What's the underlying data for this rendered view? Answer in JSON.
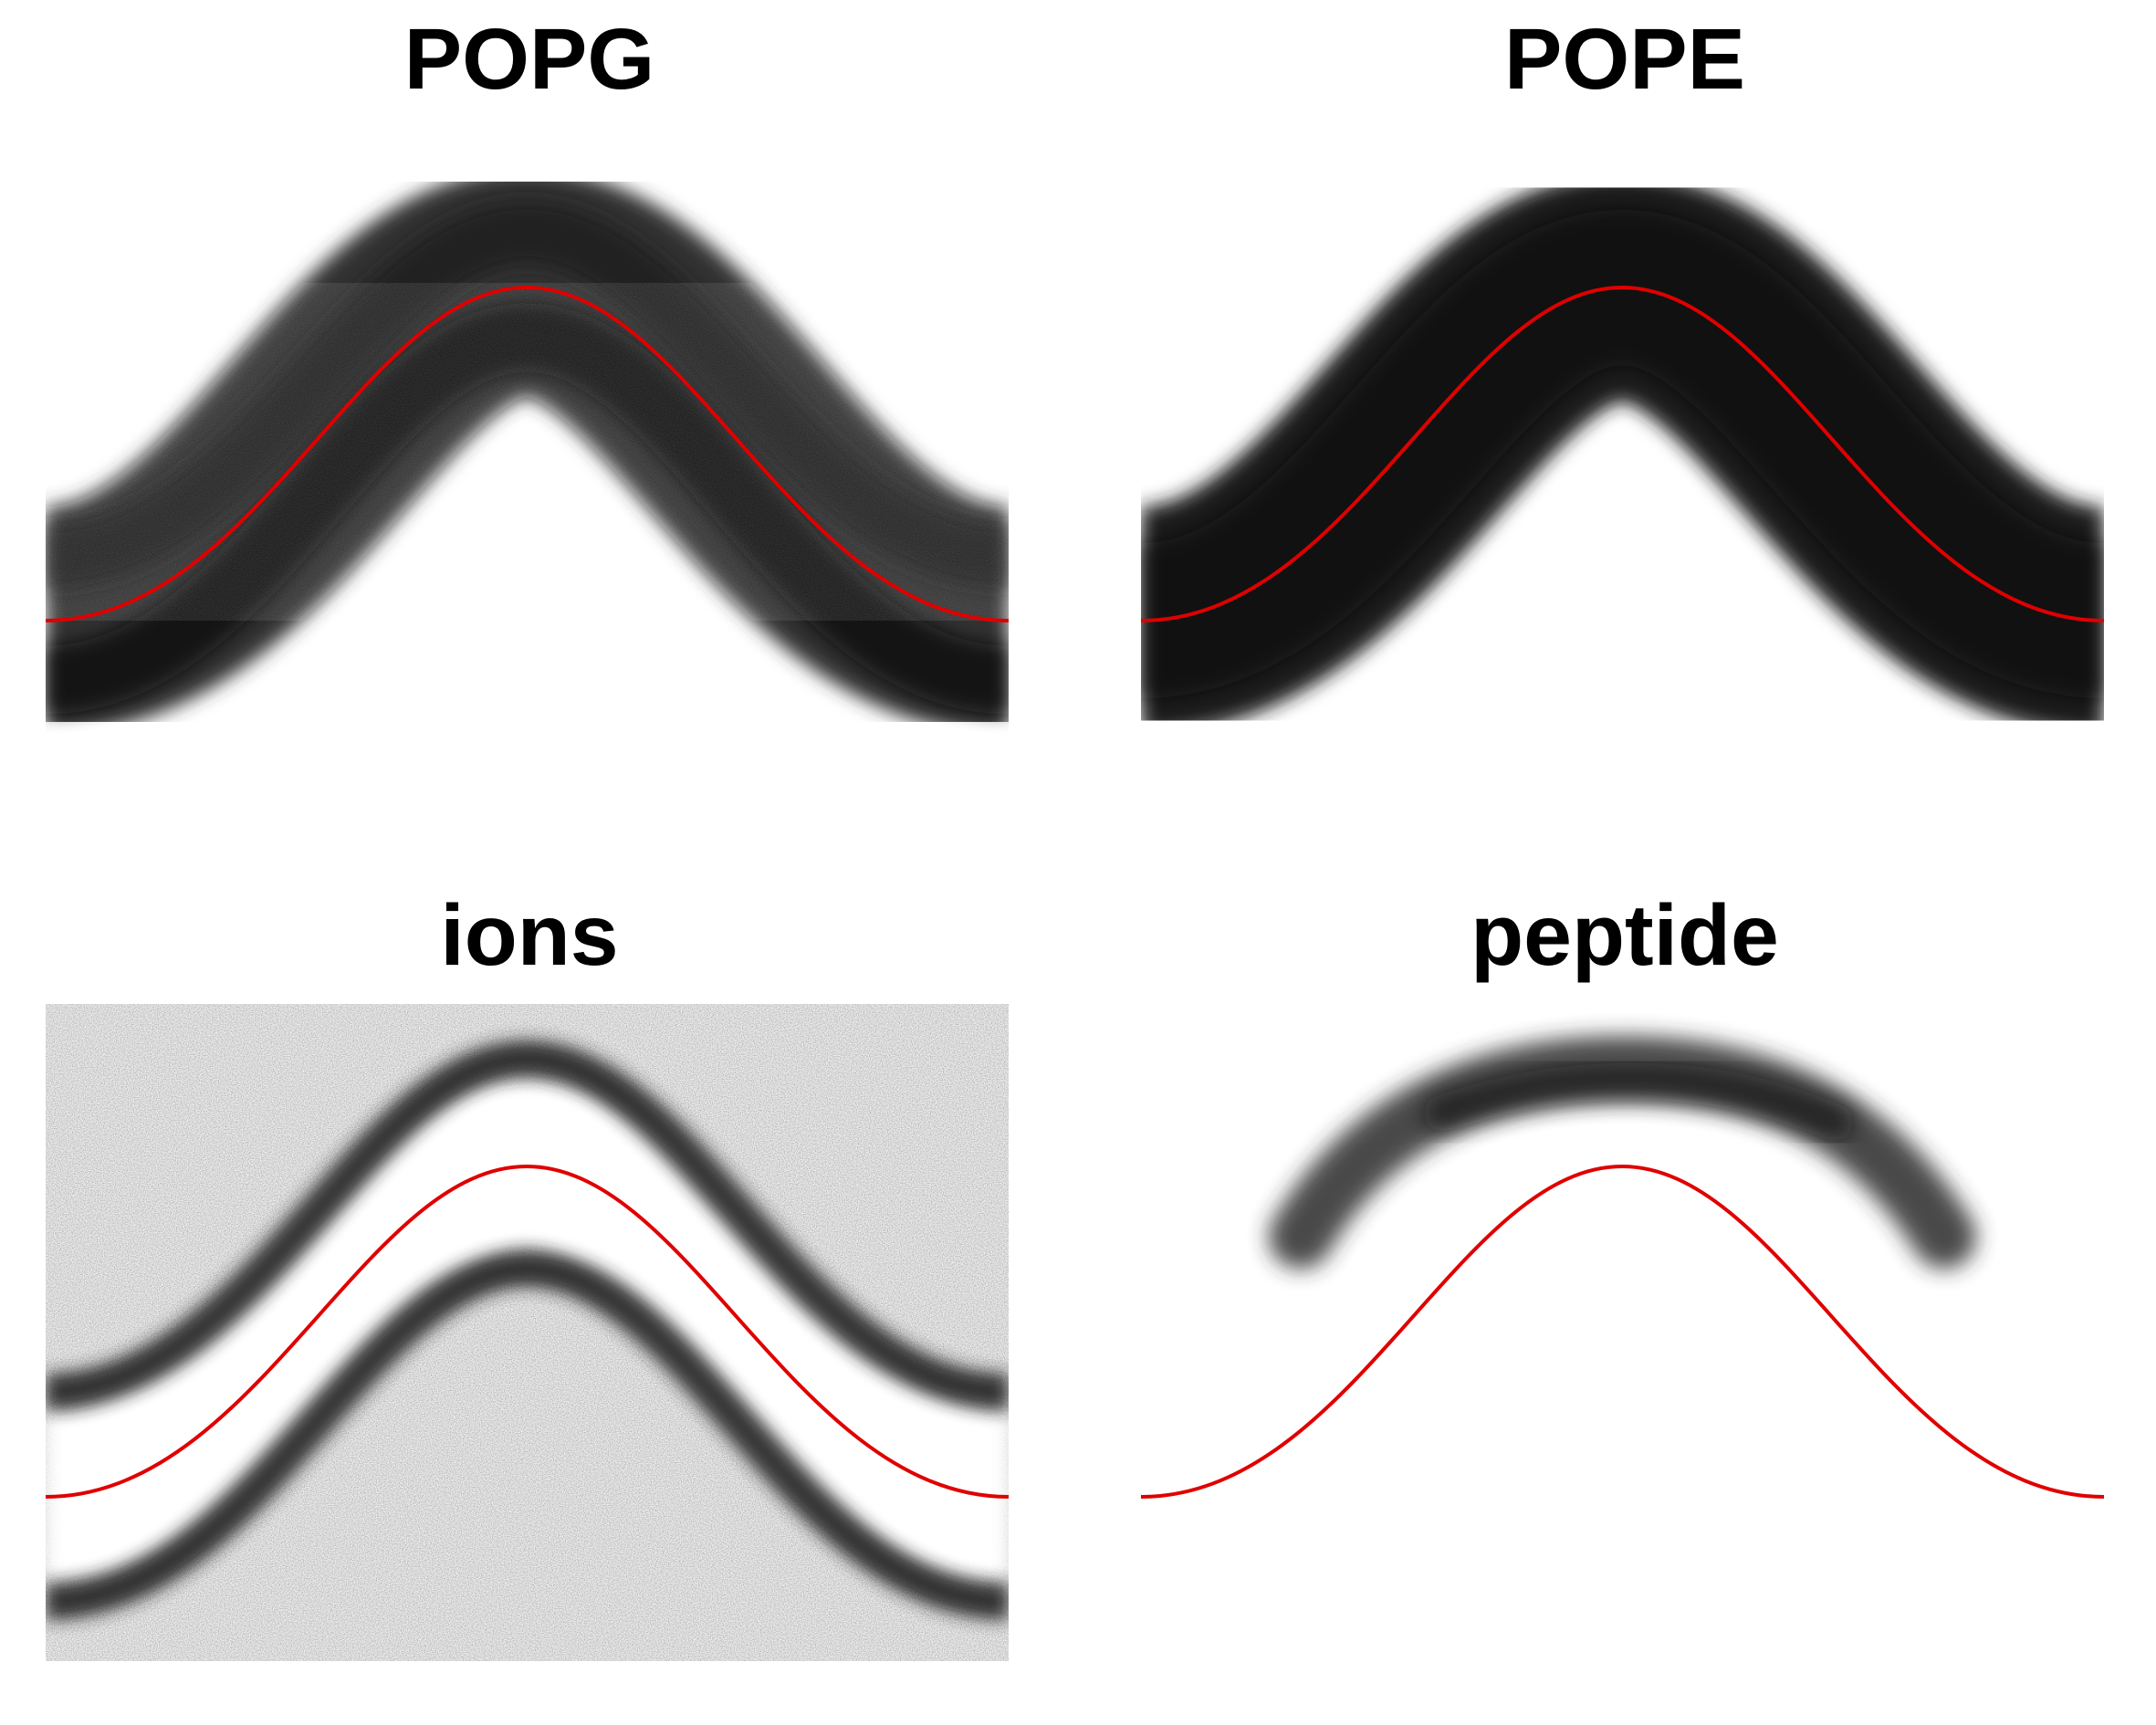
{
  "panels": [
    {
      "title": "POPG",
      "density": "membrane-bilayer"
    },
    {
      "title": "POPE",
      "density": "membrane-bilayer"
    },
    {
      "title": "ions",
      "density": "ion-distribution"
    },
    {
      "title": "peptide",
      "density": "peptide-distribution"
    }
  ],
  "colors": {
    "reference_curve": "#e00000",
    "density": "#1a1a1a",
    "background": "#ffffff"
  }
}
